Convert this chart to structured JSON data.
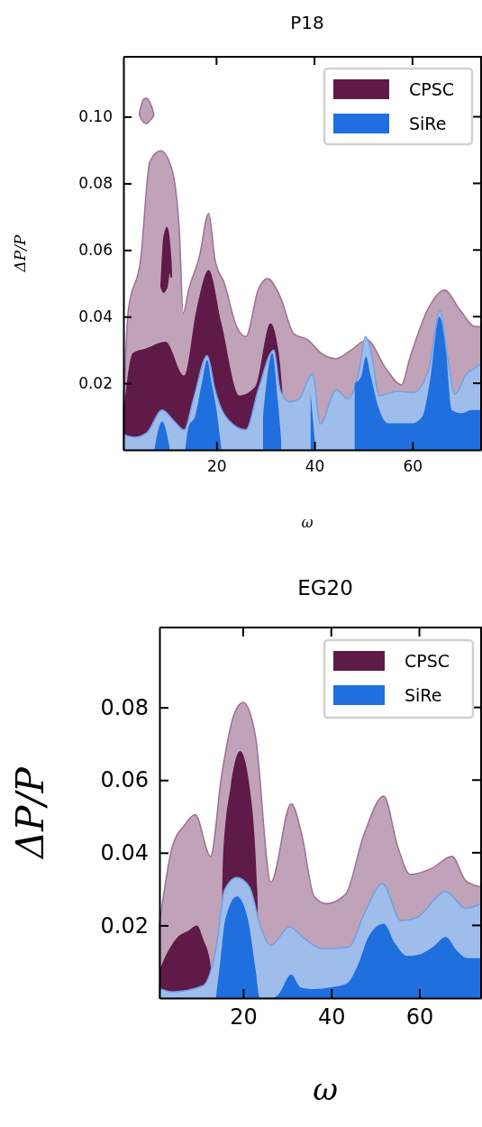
{
  "chart_data": [
    {
      "type": "area",
      "title": "P18",
      "xlabel": "ω",
      "ylabel": "ΔP/P",
      "xlim": [
        1,
        74
      ],
      "ylim": [
        0,
        0.118
      ],
      "xticks": [
        20,
        40,
        60
      ],
      "yticks": [
        0.02,
        0.04,
        0.06,
        0.08,
        {
          "value": 0.1,
          "label": "0.10"
        }
      ],
      "legend": "top right",
      "series": [
        {
          "color": "#c0a3b8",
          "x": [
            1,
            2,
            4.5,
            6.4,
            8.6,
            10.8,
            12.4,
            13.2,
            14.3,
            16.5,
            18.4,
            19.7,
            21.6,
            24.1,
            26,
            28.5,
            30.4,
            33,
            35.8,
            38.7,
            41.2,
            44.4,
            47.5,
            50.7,
            54.5,
            57.7,
            59.6,
            63.4,
            66.5,
            69.7,
            72.8,
            74
          ],
          "values": [
            0.0126,
            0.042,
            0.057,
            0.0866,
            0.0898,
            0.0847,
            0.066,
            0.041,
            0.048,
            0.058,
            0.071,
            0.057,
            0.05,
            0.037,
            0.034,
            0.048,
            0.0514,
            0.046,
            0.0348,
            0.033,
            0.0292,
            0.0274,
            0.03,
            0.033,
            0.0246,
            0.0195,
            0.0283,
            0.043,
            0.048,
            0.042,
            0.037,
            0.037
          ]
        },
        {
          "color": "#c0a3b8",
          "x": [
            4.3,
            5,
            5.8,
            6.5,
            7.2,
            6.5,
            5.8,
            5,
            4.3
          ],
          "values": [
            0.1015,
            0.105,
            0.1055,
            0.104,
            0.1005,
            0.099,
            0.098,
            0.0985,
            0.1005
          ]
        },
        {
          "name": "CPSC",
          "color": "#5f1a48",
          "x": [
            1,
            2.9,
            5.8,
            9.6,
            13.4,
            15.9,
            18.4,
            21,
            24.7,
            27.9,
            31,
            32.7,
            33.6
          ],
          "values": [
            0.0107,
            0.029,
            0.0306,
            0.0325,
            0.0223,
            0.042,
            0.054,
            0.038,
            0.0163,
            0.019,
            0.038,
            0.029,
            0.0146
          ]
        },
        {
          "color": "#5f1a48",
          "x": [
            8.7,
            9.2,
            9.9,
            10.4,
            10.8,
            10.4,
            9.9,
            9.2,
            8.7
          ],
          "values": [
            0.05,
            0.063,
            0.0667,
            0.062,
            0.052,
            0.054,
            0.049,
            0.0473,
            0.049
          ]
        },
        {
          "color": "#9fbdea",
          "x": [
            1,
            3.2,
            5.8,
            8.9,
            11.5,
            13.4,
            15.3,
            18.1,
            19.7,
            21.6,
            26,
            28.5,
            31.7,
            33,
            34.9,
            36.8,
            39.6,
            41.2,
            44.4,
            46.9,
            49.1,
            50.4,
            51.6,
            53.2,
            57,
            60.2,
            63.4,
            65.6,
            67.2,
            68.7,
            71,
            72.8,
            74
          ],
          "values": [
            0.0047,
            0.0038,
            0.0052,
            0.012,
            0.0084,
            0.006,
            0.0153,
            0.0283,
            0.018,
            0.0106,
            0.006,
            0.018,
            0.03,
            0.018,
            0.0144,
            0.0153,
            0.0228,
            0.0078,
            0.018,
            0.0153,
            0.0237,
            0.034,
            0.029,
            0.0163,
            0.0176,
            0.0172,
            0.0246,
            0.0417,
            0.0274,
            0.0167,
            0.0228,
            0.0246,
            0.026
          ]
        },
        {
          "name": "SiRe",
          "color": "#1f6fde",
          "x": [
            7.3,
            8.9,
            10.4,
            10.6,
            13.6,
            14.3,
            15.6,
            17,
            18.1,
            19,
            20,
            20.6,
            21,
            28.7,
            29.5,
            31.4,
            32.5,
            33.2,
            38.2,
            39.2,
            40.1,
            47.9,
            48.2,
            49.5,
            50.5,
            51.5,
            53,
            55,
            57,
            60,
            62,
            63.5,
            65.5,
            66.8,
            68,
            70,
            72,
            74
          ],
          "values": [
            0,
            0.0085,
            0.001,
            null,
            0,
            0.007,
            0.01,
            0.02,
            0.027,
            0.02,
            0.012,
            0.005,
            0,
            null,
            0.01,
            0.029,
            0.015,
            0.003,
            null,
            0.017,
            0.002,
            null,
            0.02,
            0.022,
            0.028,
            0.022,
            0.013,
            0.008,
            0.008,
            0.008,
            0.01,
            0.02,
            0.04,
            0.03,
            0.012,
            0.011,
            0.012,
            0.012
          ]
        }
      ]
    },
    {
      "type": "area",
      "title": "EG20",
      "xlabel": "ω",
      "ylabel": "ΔP/P",
      "xlim": [
        1,
        74
      ],
      "ylim": [
        0,
        0.102
      ],
      "xticks": [
        20,
        40,
        60
      ],
      "yticks": [
        0.02,
        0.04,
        0.06,
        0.08
      ],
      "legend": "top right",
      "series": [
        {
          "color": "#c0a3b8",
          "x": [
            1,
            3.9,
            6.7,
            9.1,
            12.6,
            15.1,
            17.9,
            20,
            22.8,
            26.3,
            30.9,
            33.3,
            36.1,
            38.9,
            43.2,
            47.4,
            51.9,
            55.1,
            57.9,
            62.8,
            67.4,
            70.5,
            74
          ],
          "values": [
            0.0204,
            0.0416,
            0.0476,
            0.0505,
            0.039,
            0.0612,
            0.078,
            0.0814,
            0.072,
            0.0319,
            0.0535,
            0.045,
            0.028,
            0.026,
            0.0285,
            0.045,
            0.0556,
            0.0416,
            0.034,
            0.0357,
            0.039,
            0.0323,
            0.0306
          ]
        },
        {
          "name": "CPSC",
          "color": "#5f1a48",
          "x": [
            1,
            3,
            5.3,
            7.5,
            9.5,
            11,
            12.5,
            13.5,
            14.8,
            15.4,
            17.2,
            19.3,
            21.4,
            23.2,
            23.6
          ],
          "values": [
            0.0077,
            0.013,
            0.017,
            0.0185,
            0.02,
            0.016,
            0.01,
            0,
            0,
            0.038,
            0.0586,
            0.068,
            0.0586,
            0.03,
            0
          ]
        },
        {
          "color": "#9fbdea",
          "x": [
            1,
            3.9,
            10.9,
            13.7,
            15.8,
            18.6,
            21.4,
            24.2,
            26.3,
            30.5,
            34,
            38.2,
            43.9,
            47.4,
            51.6,
            55.8,
            59.3,
            66,
            70.5,
            74
          ],
          "values": [
            0.0026,
            0.0017,
            0.0034,
            0.0128,
            0.0298,
            0.0332,
            0.0306,
            0.0187,
            0.0145,
            0.0196,
            0.0162,
            0.0136,
            0.014,
            0.023,
            0.0315,
            0.0213,
            0.0221,
            0.0293,
            0.0247,
            0.026
          ]
        },
        {
          "name": "SiRe",
          "color": "#1f6fde",
          "x": [
            13.8,
            14.8,
            16,
            18.6,
            21,
            22.8,
            23.8,
            26.5,
            28,
            30.9,
            33,
            36,
            40,
            43.5,
            46,
            48.5,
            51.9,
            54.5,
            57.2,
            60,
            63,
            66,
            68.5,
            71,
            74
          ],
          "values": [
            0,
            0.01,
            0.022,
            0.028,
            0.022,
            0.008,
            0,
            0,
            0.001,
            0.0065,
            0.003,
            0.0025,
            0.003,
            0.004,
            0.009,
            0.017,
            0.0205,
            0.015,
            0.0116,
            0.012,
            0.014,
            0.0168,
            0.013,
            0.011,
            0.011
          ]
        }
      ]
    }
  ]
}
